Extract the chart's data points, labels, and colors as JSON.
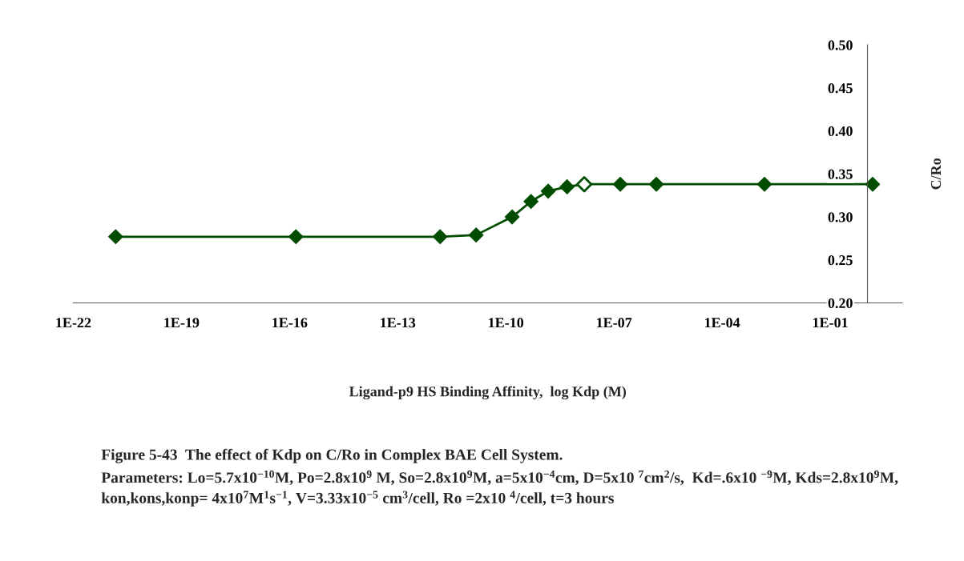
{
  "chart_data": {
    "type": "line",
    "log": "x",
    "xlabel": "Ligand-p9 HS Binding Affinity,  log Kdp (M)",
    "ylabel": "C/Ro",
    "xlim": [
      1e-22,
      10
    ],
    "xticks": [
      {
        "value": 1e-22,
        "label": "1E-22"
      },
      {
        "value": 1e-19,
        "label": "1E-19"
      },
      {
        "value": 1e-16,
        "label": "1E-16"
      },
      {
        "value": 1e-13,
        "label": "1E-13"
      },
      {
        "value": 1e-10,
        "label": "1E-10"
      },
      {
        "value": 1e-07,
        "label": "1E-07"
      },
      {
        "value": 0.0001,
        "label": "1E-04"
      },
      {
        "value": 0.1,
        "label": "1E-01"
      }
    ],
    "ylim": [
      0.2,
      0.5
    ],
    "yticks": [
      {
        "value": 0.2,
        "label": "0.20"
      },
      {
        "value": 0.25,
        "label": "0.25"
      },
      {
        "value": 0.3,
        "label": "0.30"
      },
      {
        "value": 0.35,
        "label": "0.35"
      },
      {
        "value": 0.4,
        "label": "0.40"
      },
      {
        "value": 0.45,
        "label": "0.45"
      },
      {
        "value": 0.5,
        "label": "0.50"
      }
    ],
    "grid": false,
    "legend": false,
    "marker": "diamond",
    "line_style": "solid",
    "series": [
      {
        "color": "#004d00",
        "x": [
          1.5e-21,
          1.5e-16,
          1.5e-12,
          1.5e-11,
          1.5e-10,
          5e-10,
          1.5e-09,
          5e-09,
          1.5e-08,
          1.5e-07,
          1.5e-06,
          0.0015,
          1.5
        ],
        "values": [
          0.277,
          0.277,
          0.277,
          0.279,
          0.3,
          0.318,
          0.33,
          0.335,
          0.338,
          0.338,
          0.338,
          0.338,
          0.338
        ]
      },
      {
        "type": "scatter",
        "color": "#004d00",
        "x": [
          1.5e-08
        ],
        "values": [
          0.338
        ]
      }
    ],
    "annotations": [
      "Figure 5-43  The effect of Kdp on C/Ro in Complex BAE Cell System.",
      "Parameters: Lo=5.7x10$^{−10}$M, Po=2.8x10$^{9}$ M, So=2.8x10$^{9}$M, a=5x10$^{−4}$cm, D=5x10 $^{7}$cm$^{2}$/s,  Kd=.6x10 $^{−9}$M, Kds=2.8x10$^{9}$M, kon,kons,konp= 4x10$^{7}$M$^{1}$s$^{−1}$, V=3.33x10$^{−5}$ cm$^{3}$/cell, Ro =2x10 $^{4}$/cell, t=3 hours"
    ]
  }
}
